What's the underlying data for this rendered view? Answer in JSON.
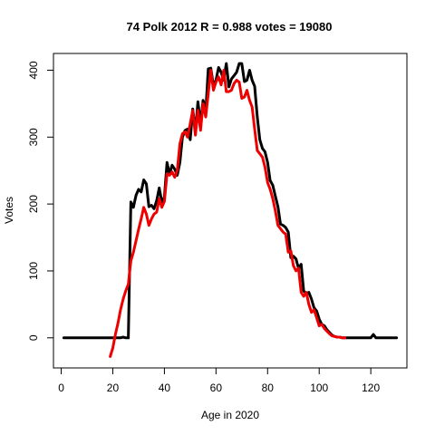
{
  "chart_data": {
    "type": "line",
    "title": "74 Polk 2012 R = 0.988 votes = 19080",
    "xlabel": "Age in 2020",
    "ylabel": "Votes",
    "xlim": [
      -3,
      134
    ],
    "ylim": [
      -45,
      425
    ],
    "xticks": [
      0,
      20,
      40,
      60,
      80,
      100,
      120
    ],
    "yticks": [
      0,
      100,
      200,
      300,
      400
    ],
    "grid": false,
    "colors": {
      "actual": "#000000",
      "fit": "#ee0000"
    },
    "series": [
      {
        "key": "actual",
        "color": "#000000",
        "x": [
          1,
          2,
          3,
          4,
          5,
          6,
          7,
          8,
          9,
          10,
          11,
          12,
          13,
          14,
          15,
          16,
          17,
          18,
          19,
          20,
          21,
          22,
          23,
          24,
          25,
          26,
          27,
          28,
          29,
          30,
          31,
          32,
          33,
          34,
          35,
          36,
          37,
          38,
          39,
          40,
          41,
          42,
          43,
          44,
          45,
          46,
          47,
          48,
          49,
          50,
          51,
          52,
          53,
          54,
          55,
          56,
          57,
          58,
          59,
          60,
          61,
          62,
          63,
          64,
          65,
          66,
          67,
          68,
          69,
          70,
          71,
          72,
          73,
          74,
          75,
          76,
          77,
          78,
          79,
          80,
          81,
          82,
          83,
          84,
          85,
          86,
          87,
          88,
          89,
          90,
          91,
          92,
          93,
          94,
          95,
          96,
          97,
          98,
          99,
          100,
          101,
          102,
          103,
          104,
          105,
          106,
          107,
          108,
          109,
          110,
          111,
          112,
          113,
          114,
          115,
          116,
          117,
          118,
          119,
          120,
          121,
          122,
          123,
          124,
          125,
          126,
          127,
          128,
          129,
          130
        ],
        "y": [
          0,
          0,
          0,
          0,
          0,
          0,
          0,
          0,
          0,
          0,
          0,
          0,
          0,
          0,
          0,
          0,
          0,
          0,
          0,
          0,
          0,
          0,
          0,
          1,
          0,
          0,
          203,
          195,
          213,
          222,
          218,
          236,
          230,
          196,
          198,
          193,
          205,
          224,
          203,
          210,
          262,
          245,
          258,
          252,
          243,
          262,
          300,
          310,
          312,
          296,
          342,
          308,
          353,
          320,
          355,
          337,
          402,
          403,
          377,
          385,
          404,
          397,
          385,
          410,
          375,
          387,
          392,
          397,
          410,
          410,
          383,
          385,
          400,
          385,
          376,
          330,
          296,
          283,
          278,
          262,
          235,
          228,
          212,
          196,
          170,
          168,
          165,
          158,
          120,
          122,
          118,
          104,
          110,
          70,
          66,
          68,
          58,
          45,
          40,
          28,
          20,
          18,
          12,
          8,
          4,
          2,
          1,
          1,
          0,
          0,
          0,
          0,
          0,
          0,
          0,
          0,
          0,
          0,
          0,
          0,
          5,
          0,
          0,
          0,
          0,
          0,
          0,
          0,
          0,
          0
        ]
      },
      {
        "key": "fit",
        "color": "#ee0000",
        "x": [
          19,
          20,
          21,
          22,
          23,
          24,
          25,
          26,
          27,
          28,
          29,
          30,
          31,
          32,
          33,
          34,
          35,
          36,
          37,
          38,
          39,
          40,
          41,
          42,
          43,
          44,
          45,
          46,
          47,
          48,
          49,
          50,
          51,
          52,
          53,
          54,
          55,
          56,
          57,
          58,
          59,
          60,
          61,
          62,
          63,
          64,
          65,
          66,
          67,
          68,
          69,
          70,
          71,
          72,
          73,
          74,
          75,
          76,
          77,
          78,
          79,
          80,
          81,
          82,
          83,
          84,
          85,
          86,
          87,
          88,
          89,
          90,
          91,
          92,
          93,
          94,
          95,
          96,
          97,
          98,
          99,
          100,
          101,
          102,
          103,
          104,
          105,
          106,
          107,
          108,
          109,
          110
        ],
        "y": [
          -28,
          -15,
          5,
          22,
          42,
          58,
          70,
          80,
          115,
          128,
          145,
          162,
          178,
          195,
          185,
          168,
          178,
          185,
          188,
          208,
          195,
          204,
          245,
          243,
          248,
          240,
          250,
          290,
          305,
          308,
          300,
          320,
          340,
          303,
          340,
          310,
          350,
          330,
          365,
          400,
          370,
          382,
          390,
          378,
          400,
          368,
          368,
          370,
          380,
          385,
          382,
          358,
          360,
          370,
          355,
          345,
          312,
          280,
          275,
          270,
          255,
          232,
          222,
          208,
          190,
          168,
          163,
          158,
          155,
          128,
          130,
          108,
          100,
          104,
          68,
          62,
          68,
          50,
          38,
          42,
          30,
          18,
          20,
          14,
          10,
          6,
          3,
          2,
          1,
          1,
          0,
          0
        ]
      }
    ]
  }
}
